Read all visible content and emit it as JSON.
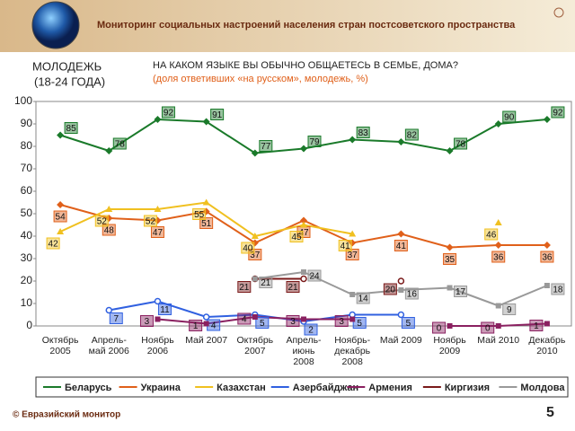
{
  "header": {
    "title": "Мониторинг социальных настроений населения стран постсоветского пространства"
  },
  "chart_data": {
    "type": "line",
    "title": "НА КАКОМ ЯЗЫКЕ ВЫ ОБЫЧНО ОБЩАЕТЕСЬ В СЕМЬЕ, ДОМА?",
    "subtitle": "(доля ответивших «на русском», молодежь, %)",
    "group": "МОЛОДЕЖЬ",
    "group_age": "(18-24 ГОДА)",
    "categories": [
      "Октябрь\n2005",
      "Апрель-\nмай 2006",
      "Ноябрь\n2006",
      "Май 2007",
      "Октябрь\n2007",
      "Апрель-\nиюнь\n2008",
      "Ноябрь-\nдекабрь\n2008",
      "Май 2009",
      "Ноябрь\n2009",
      "Май 2010",
      "Декабрь\n2010"
    ],
    "series": [
      {
        "name": "Беларусь",
        "color": "#1a7a2a",
        "marker": "diamond",
        "values": [
          85,
          78,
          92,
          91,
          77,
          79,
          83,
          82,
          78,
          90,
          92
        ]
      },
      {
        "name": "Украина",
        "color": "#e0601a",
        "marker": "diamond",
        "values": [
          54,
          48,
          47,
          51,
          37,
          47,
          37,
          41,
          35,
          36,
          36
        ]
      },
      {
        "name": "Казахстан",
        "color": "#f0c020",
        "marker": "triangle",
        "values": [
          42,
          52,
          52,
          55,
          40,
          45,
          41,
          null,
          null,
          46,
          null
        ]
      },
      {
        "name": "Азербайджан",
        "color": "#3060e0",
        "marker": "open-circle",
        "values": [
          null,
          7,
          11,
          4,
          5,
          2,
          5,
          5,
          null,
          null,
          null
        ]
      },
      {
        "name": "Армения",
        "color": "#8a2060",
        "marker": "square",
        "values": [
          null,
          null,
          3,
          1,
          4,
          3,
          3,
          null,
          0,
          0,
          1
        ]
      },
      {
        "name": "Киргизия",
        "color": "#7a1a1a",
        "marker": "open-circle",
        "values": [
          null,
          null,
          null,
          null,
          21,
          21,
          null,
          20,
          null,
          null,
          null
        ]
      },
      {
        "name": "Молдова",
        "color": "#999999",
        "marker": "square",
        "values": [
          null,
          null,
          null,
          null,
          21,
          24,
          14,
          16,
          17,
          9,
          18
        ]
      }
    ],
    "ylim": [
      0,
      100
    ],
    "yticks": [
      0,
      10,
      20,
      30,
      40,
      50,
      60,
      70,
      80,
      90,
      100
    ],
    "grid": false
  },
  "footer": {
    "source": "© Евразийский монитор",
    "page": "5"
  }
}
